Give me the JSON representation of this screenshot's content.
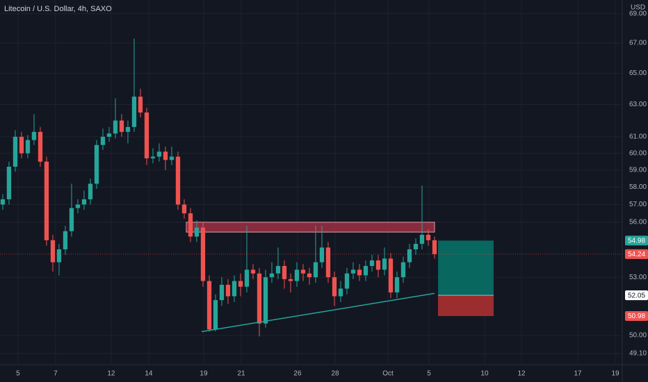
{
  "chart_data": {
    "type": "candlestick",
    "title": "Litecoin / U.S. Dollar, 4h, SAXO",
    "currency": "USD",
    "log": true,
    "grid": true,
    "up_color": "#26a69a",
    "down_color": "#ef5350",
    "ylim": [
      48.56,
      69.95
    ],
    "yticks": [
      {
        "value": 49.1,
        "label": "49.10"
      },
      {
        "value": 50,
        "label": "50.00"
      },
      {
        "value": 53,
        "label": "53.00"
      },
      {
        "value": 56,
        "label": "56.00"
      },
      {
        "value": 57,
        "label": "57.00"
      },
      {
        "value": 58,
        "label": "58.00"
      },
      {
        "value": 59,
        "label": "59.00"
      },
      {
        "value": 60,
        "label": "60.00"
      },
      {
        "value": 61,
        "label": "61.00"
      },
      {
        "value": 63,
        "label": "63.00"
      },
      {
        "value": 65,
        "label": "65.00"
      },
      {
        "value": 67,
        "label": "67.00"
      },
      {
        "value": 69,
        "label": "69.00"
      }
    ],
    "xlim": [
      -0.44,
      99
    ],
    "xticks": [
      {
        "value": 2.44,
        "label": "5"
      },
      {
        "value": 8.44,
        "label": "7"
      },
      {
        "value": 17.33,
        "label": "12"
      },
      {
        "value": 23.33,
        "label": "14"
      },
      {
        "value": 32.11,
        "label": "19"
      },
      {
        "value": 38.11,
        "label": "21"
      },
      {
        "value": 47.11,
        "label": "26"
      },
      {
        "value": 53.11,
        "label": "28"
      },
      {
        "value": 61.56,
        "label": "Oct"
      },
      {
        "value": 68.11,
        "label": "5"
      },
      {
        "value": 77,
        "label": "10"
      },
      {
        "value": 82.89,
        "label": "12"
      },
      {
        "value": 91.89,
        "label": "17"
      },
      {
        "value": 97.89,
        "label": "19"
      }
    ],
    "open": [
      57.0,
      57.3,
      59.2,
      61.0,
      60.0,
      60.8,
      61.3,
      59.5,
      55.0,
      53.8,
      54.5,
      55.5,
      56.8,
      57.0,
      57.3,
      58.2,
      60.5,
      61.0,
      61.2,
      62.0,
      61.3,
      61.6,
      63.5,
      62.5,
      59.7,
      59.8,
      60.1,
      59.6,
      59.8,
      57.0,
      56.5,
      55.2,
      55.7,
      52.8,
      50.3,
      51.8,
      52.6,
      52.0,
      52.8,
      52.5,
      53.4,
      53.2,
      50.6,
      53.0,
      53.2,
      53.6,
      52.9,
      52.8,
      53.4,
      53.2,
      53.0,
      53.8,
      54.6,
      53.0,
      52.0,
      52.4,
      53.2,
      53.4,
      53.1,
      53.6,
      53.9,
      53.4,
      54.0,
      52.2,
      53.0,
      53.8,
      54.5,
      54.8,
      55.3,
      55.0
    ],
    "high": [
      57.6,
      59.5,
      61.4,
      61.3,
      61.1,
      62.4,
      61.6,
      59.8,
      55.3,
      54.8,
      55.8,
      58.2,
      57.3,
      57.8,
      58.5,
      60.8,
      61.5,
      61.6,
      63.4,
      62.4,
      62.0,
      67.3,
      64.0,
      62.8,
      60.3,
      60.6,
      60.4,
      60.4,
      60.1,
      57.3,
      56.8,
      56.1,
      56.0,
      53.1,
      52.1,
      53.0,
      52.9,
      53.1,
      53.2,
      55.8,
      53.7,
      53.5,
      53.4,
      53.8,
      54.6,
      53.9,
      53.2,
      53.8,
      53.7,
      53.5,
      55.8,
      55.8,
      54.9,
      53.3,
      52.8,
      53.5,
      53.8,
      53.7,
      53.9,
      54.2,
      54.2,
      54.6,
      54.3,
      53.3,
      54.1,
      54.8,
      55.1,
      58.1,
      55.6,
      55.2
    ],
    "low": [
      56.7,
      57.0,
      58.9,
      59.7,
      59.7,
      60.5,
      59.2,
      54.7,
      53.3,
      53.1,
      54.2,
      55.2,
      56.5,
      56.7,
      57.0,
      57.9,
      60.2,
      60.7,
      60.9,
      61.0,
      60.6,
      61.3,
      62.2,
      59.3,
      59.4,
      59.5,
      59.0,
      59.3,
      56.7,
      56.2,
      54.9,
      54.9,
      52.5,
      50.2,
      50.2,
      51.5,
      51.6,
      51.7,
      52.0,
      52.2,
      52.9,
      49.95,
      50.4,
      52.7,
      52.9,
      52.4,
      52.2,
      52.5,
      52.8,
      52.6,
      52.7,
      53.5,
      52.7,
      51.5,
      51.7,
      52.1,
      52.9,
      52.8,
      52.8,
      53.3,
      53.0,
      53.1,
      51.9,
      51.9,
      52.7,
      53.5,
      54.2,
      54.5,
      54.7,
      54.0
    ],
    "close": [
      57.3,
      59.2,
      61.0,
      60.0,
      60.8,
      61.3,
      59.5,
      55.0,
      53.8,
      54.5,
      55.5,
      56.8,
      57.0,
      57.3,
      58.2,
      60.5,
      61.0,
      61.2,
      62.0,
      61.3,
      61.6,
      63.5,
      62.5,
      59.7,
      59.8,
      60.1,
      59.6,
      59.8,
      57.0,
      56.5,
      55.2,
      55.7,
      52.8,
      50.3,
      51.8,
      52.6,
      52.0,
      52.8,
      52.5,
      53.4,
      53.2,
      50.6,
      53.0,
      53.2,
      53.6,
      52.9,
      52.8,
      53.4,
      53.2,
      53.0,
      53.8,
      54.6,
      53.0,
      52.0,
      52.4,
      53.2,
      53.4,
      53.1,
      53.6,
      53.9,
      53.4,
      54.0,
      52.2,
      53.0,
      53.8,
      54.5,
      54.8,
      55.3,
      55.0,
      54.24
    ],
    "zone": {
      "top": 56.0,
      "bottom": 55.45,
      "start": 29.33,
      "end": 69,
      "color": "#b2334a"
    },
    "trendline": {
      "start": [
        31.78,
        50.19
      ],
      "end": [
        69,
        52.15
      ],
      "color": "#26a69a"
    },
    "position": {
      "start": 69.56,
      "end": 78.44,
      "target": 54.98,
      "entry": 52.05,
      "stop": 50.98,
      "target_color": "#08675f",
      "stop_color": "#9c2d2f"
    }
  }
}
